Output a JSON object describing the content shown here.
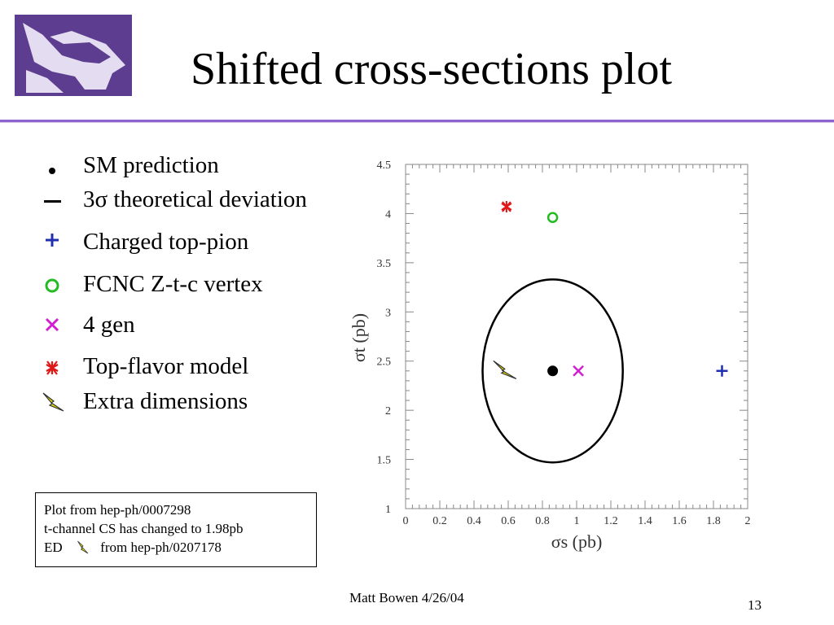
{
  "slide": {
    "title": "Shifted cross-sections plot",
    "footer": "Matt Bowen 4/26/04",
    "page_number": "13",
    "accent_color": "#8e63cf",
    "logo_color": "#5c3d8f"
  },
  "legend": {
    "items": [
      {
        "label": "SM prediction",
        "marker": "filled-circle-icon",
        "color": "#000000"
      },
      {
        "label": "3σ theoretical deviation",
        "marker": "dash-icon",
        "color": "#000000"
      },
      {
        "label": "Charged top-pion",
        "marker": "plus-icon",
        "color": "#1f2fb0"
      },
      {
        "label": "FCNC Z-t-c vertex",
        "marker": "open-circle-icon",
        "color": "#22bb22"
      },
      {
        "label": "4 gen",
        "marker": "cross-icon",
        "color": "#d020d0"
      },
      {
        "label": "Top-flavor model",
        "marker": "star-icon",
        "color": "#e01818"
      },
      {
        "label": " Extra dimensions",
        "marker": "lightning-icon",
        "color": "#e8e000"
      }
    ]
  },
  "note": {
    "line1": "Plot from hep-ph/0007298",
    "line2": "t-channel CS has changed to 1.98pb",
    "line3_prefix": "ED",
    "line3_suffix": " from hep-ph/0207178"
  },
  "chart_data": {
    "type": "scatter",
    "xlabel": "σs  (pb)",
    "ylabel": "σt  (pb)",
    "xlim": [
      0,
      2
    ],
    "ylim": [
      1,
      4.5
    ],
    "xticks": [
      "0",
      "0.2",
      "0.4",
      "0.6",
      "0.8",
      "1",
      "1.2",
      "1.4",
      "1.6",
      "1.8",
      "2"
    ],
    "yticks": [
      "1",
      "1.5",
      "2",
      "2.5",
      "3",
      "3.5",
      "4",
      "4.5"
    ],
    "grid": false,
    "ellipse": {
      "center": [
        0.86,
        2.4
      ],
      "x_radius": 0.41,
      "y_radius": 0.93,
      "label": "3σ theoretical deviation"
    },
    "points": [
      {
        "name": "SM prediction",
        "x": 0.86,
        "y": 2.4,
        "marker": "filled-circle",
        "color": "#000000"
      },
      {
        "name": "Charged top-pion",
        "x": 1.85,
        "y": 2.4,
        "marker": "plus",
        "color": "#1f2fb0"
      },
      {
        "name": "FCNC Z-t-c vertex",
        "x": 0.86,
        "y": 3.96,
        "marker": "open-circle",
        "color": "#22bb22"
      },
      {
        "name": "4 gen",
        "x": 1.01,
        "y": 2.4,
        "marker": "cross",
        "color": "#d020d0"
      },
      {
        "name": "Top-flavor model",
        "x": 0.59,
        "y": 4.07,
        "marker": "star",
        "color": "#e01818"
      },
      {
        "name": "Extra dimensions",
        "x": 0.58,
        "y": 2.42,
        "marker": "lightning",
        "color": "#e8e000"
      }
    ]
  }
}
